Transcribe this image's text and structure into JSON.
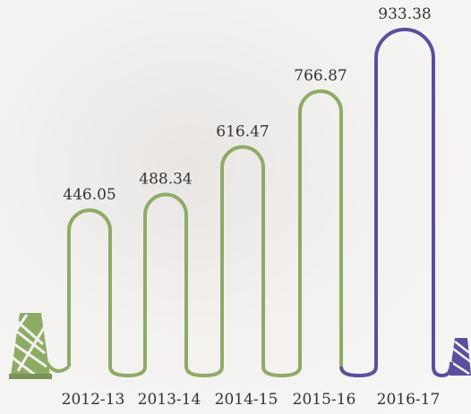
{
  "chart_data": {
    "type": "bar",
    "categories": [
      "2012-13",
      "2013-14",
      "2014-15",
      "2015-16",
      "2016-17"
    ],
    "values": [
      446.05,
      488.34,
      616.47,
      766.87,
      933.38
    ],
    "colors": [
      "#8eab66",
      "#8eab66",
      "#8eab66",
      "#8eab66",
      "#5a4f9e"
    ]
  }
}
